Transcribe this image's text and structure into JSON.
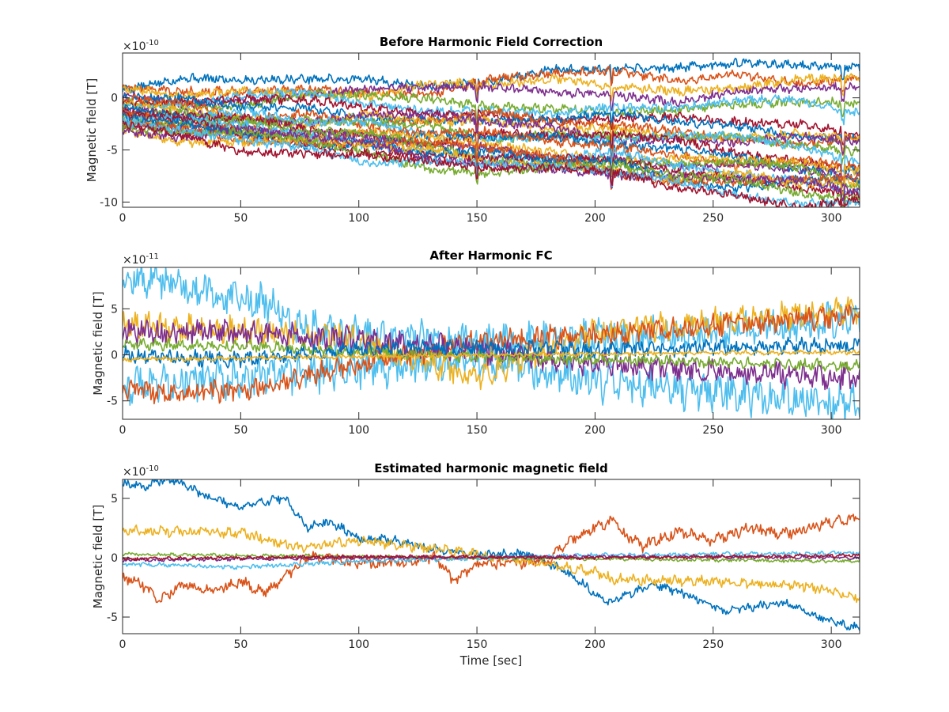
{
  "figure": {
    "background": "#ffffff"
  },
  "colors": [
    "#0072BD",
    "#D95319",
    "#EDB120",
    "#7E2F8E",
    "#77AC30",
    "#4DBEEE",
    "#A2142F"
  ],
  "chart_data": [
    {
      "type": "line",
      "title": "Before Harmonic Field Correction",
      "xlabel": "",
      "ylabel": "Magnetic field [T]",
      "exponent_label": "×10",
      "exponent_power": "-10",
      "xlim": [
        0,
        312
      ],
      "ylim": [
        -10.5,
        4.3
      ],
      "xticks": [
        0,
        50,
        100,
        150,
        200,
        250,
        300
      ],
      "yticks": [
        -10,
        -5,
        0
      ],
      "series_count": 28,
      "series_start_range": [
        -3.2,
        0.8
      ],
      "series_end_range": [
        -10.2,
        3.6
      ],
      "noise_amplitude": 0.35,
      "dip_times": [
        150,
        207,
        305
      ],
      "series_start_values": [
        0.6,
        0.4,
        0.3,
        0.1,
        -0.1,
        -0.3,
        -0.5,
        -0.6,
        -0.8,
        -1.0,
        -1.1,
        -1.3,
        -1.4,
        -1.6,
        -1.7,
        -1.9,
        -2.0,
        -2.1,
        -2.2,
        -2.3,
        -2.4,
        -2.5,
        -2.6,
        -2.7,
        -2.8,
        -2.9,
        -3.0,
        -3.2
      ],
      "series_end_values": [
        3.6,
        2.4,
        1.8,
        0.6,
        -0.8,
        -1.3,
        -2.8,
        -3.2,
        -3.6,
        -4.0,
        -4.4,
        -4.9,
        -5.4,
        -5.9,
        -6.3,
        -6.6,
        -7.1,
        -7.5,
        -7.8,
        -8.0,
        -8.3,
        -8.6,
        -8.8,
        -9.1,
        -9.4,
        -9.7,
        -10.0,
        -10.2
      ]
    },
    {
      "type": "line",
      "title": "After Harmonic FC",
      "xlabel": "",
      "ylabel": "Magnetic field [T]",
      "exponent_label": "×10",
      "exponent_power": "-11",
      "xlim": [
        0,
        312
      ],
      "ylim": [
        -7,
        9.5
      ],
      "xticks": [
        0,
        50,
        100,
        150,
        200,
        250,
        300
      ],
      "yticks": [
        -5,
        0,
        5
      ],
      "series": [
        {
          "color_index": 5,
          "points": [
            [
              0,
              8.2
            ],
            [
              20,
              8.0
            ],
            [
              40,
              6.3
            ],
            [
              60,
              5.6
            ],
            [
              75,
              3.2
            ],
            [
              100,
              2.0
            ],
            [
              150,
              1.5
            ],
            [
              200,
              1.8
            ],
            [
              250,
              2.5
            ],
            [
              312,
              3.8
            ]
          ],
          "noise": 1.6
        },
        {
          "color_index": 5,
          "points": [
            [
              0,
              -3.2
            ],
            [
              50,
              -2.5
            ],
            [
              100,
              -1.5
            ],
            [
              150,
              -0.5
            ],
            [
              200,
              -3.0
            ],
            [
              250,
              -4.0
            ],
            [
              312,
              -5.5
            ]
          ],
          "noise": 1.7
        },
        {
          "color_index": 2,
          "points": [
            [
              0,
              3.2
            ],
            [
              50,
              2.6
            ],
            [
              100,
              1.8
            ],
            [
              150,
              -2.5
            ],
            [
              200,
              2.5
            ],
            [
              250,
              3.5
            ],
            [
              312,
              5.0
            ]
          ],
          "noise": 1.2
        },
        {
          "color_index": 1,
          "points": [
            [
              0,
              -3.8
            ],
            [
              30,
              -4.2
            ],
            [
              60,
              -3.5
            ],
            [
              90,
              -1.5
            ],
            [
              150,
              1.5
            ],
            [
              200,
              2.2
            ],
            [
              250,
              3.2
            ],
            [
              312,
              4.3
            ]
          ],
          "noise": 1.0
        },
        {
          "color_index": 3,
          "points": [
            [
              0,
              2.5
            ],
            [
              50,
              2.4
            ],
            [
              100,
              1.6
            ],
            [
              150,
              0.5
            ],
            [
              200,
              -1.0
            ],
            [
              250,
              -1.8
            ],
            [
              312,
              -2.5
            ]
          ],
          "noise": 1.1
        },
        {
          "color_index": 4,
          "points": [
            [
              0,
              1.2
            ],
            [
              50,
              1.0
            ],
            [
              100,
              0.3
            ],
            [
              150,
              -0.2
            ],
            [
              200,
              -0.5
            ],
            [
              250,
              -0.8
            ],
            [
              312,
              -1.2
            ]
          ],
          "noise": 0.5
        },
        {
          "color_index": 0,
          "points": [
            [
              0,
              0.0
            ],
            [
              50,
              -0.5
            ],
            [
              100,
              0.6
            ],
            [
              150,
              0.8
            ],
            [
              200,
              0.5
            ],
            [
              250,
              0.8
            ],
            [
              312,
              1.0
            ]
          ],
          "noise": 0.7
        },
        {
          "color_index": 2,
          "points": [
            [
              0,
              -0.5
            ],
            [
              100,
              -0.2
            ],
            [
              200,
              0.1
            ],
            [
              312,
              0.3
            ]
          ],
          "noise": 0.2
        }
      ]
    },
    {
      "type": "line",
      "title": "Estimated harmonic magnetic field",
      "xlabel": "Time [sec]",
      "ylabel": "Magnetic field [T]",
      "exponent_label": "×10",
      "exponent_power": "-10",
      "xlim": [
        0,
        312
      ],
      "ylim": [
        -6.4,
        6.6
      ],
      "xticks": [
        0,
        50,
        100,
        150,
        200,
        250,
        300
      ],
      "yticks": [
        -5,
        0,
        5
      ],
      "series": [
        {
          "color_index": 0,
          "points": [
            [
              0,
              6.3
            ],
            [
              10,
              6.0
            ],
            [
              18,
              6.6
            ],
            [
              25,
              6.3
            ],
            [
              35,
              5.2
            ],
            [
              50,
              4.3
            ],
            [
              58,
              4.6
            ],
            [
              65,
              5.0
            ],
            [
              70,
              4.8
            ],
            [
              78,
              2.5
            ],
            [
              85,
              3.0
            ],
            [
              92,
              2.6
            ],
            [
              100,
              1.6
            ],
            [
              115,
              1.5
            ],
            [
              130,
              0.8
            ],
            [
              150,
              0.3
            ],
            [
              170,
              0.3
            ],
            [
              185,
              -0.8
            ],
            [
              195,
              -2.2
            ],
            [
              205,
              -3.8
            ],
            [
              215,
              -3.0
            ],
            [
              225,
              -2.2
            ],
            [
              240,
              -3.2
            ],
            [
              255,
              -4.5
            ],
            [
              270,
              -4.0
            ],
            [
              280,
              -3.8
            ],
            [
              295,
              -5.0
            ],
            [
              312,
              -6.0
            ]
          ],
          "noise": 0.3
        },
        {
          "color_index": 1,
          "points": [
            [
              0,
              -1.7
            ],
            [
              8,
              -2.2
            ],
            [
              15,
              -3.8
            ],
            [
              25,
              -2.2
            ],
            [
              35,
              -2.8
            ],
            [
              50,
              -2.0
            ],
            [
              60,
              -3.0
            ],
            [
              70,
              -1.5
            ],
            [
              78,
              0.0
            ],
            [
              90,
              0.0
            ],
            [
              100,
              -0.5
            ],
            [
              120,
              -0.5
            ],
            [
              132,
              0.0
            ],
            [
              140,
              -2.0
            ],
            [
              150,
              -0.5
            ],
            [
              160,
              -0.5
            ],
            [
              180,
              -0.3
            ],
            [
              187,
              1.2
            ],
            [
              200,
              2.5
            ],
            [
              208,
              3.2
            ],
            [
              212,
              2.0
            ],
            [
              220,
              1.0
            ],
            [
              235,
              2.2
            ],
            [
              250,
              1.5
            ],
            [
              265,
              2.5
            ],
            [
              280,
              2.0
            ],
            [
              295,
              2.8
            ],
            [
              312,
              3.4
            ]
          ],
          "noise": 0.4
        },
        {
          "color_index": 2,
          "points": [
            [
              0,
              2.3
            ],
            [
              50,
              2.1
            ],
            [
              75,
              0.8
            ],
            [
              100,
              1.5
            ],
            [
              150,
              0.3
            ],
            [
              200,
              -1.2
            ],
            [
              207,
              -1.8
            ],
            [
              250,
              -2.0
            ],
            [
              290,
              -2.4
            ],
            [
              312,
              -3.4
            ]
          ],
          "noise": 0.35
        },
        {
          "color_index": 5,
          "points": [
            [
              0,
              -0.5
            ],
            [
              50,
              -0.8
            ],
            [
              100,
              -0.3
            ],
            [
              200,
              0.2
            ],
            [
              312,
              0.4
            ]
          ],
          "noise": 0.15
        },
        {
          "color_index": 4,
          "points": [
            [
              0,
              0.3
            ],
            [
              100,
              0.1
            ],
            [
              200,
              -0.1
            ],
            [
              312,
              -0.3
            ]
          ],
          "noise": 0.12
        },
        {
          "color_index": 3,
          "points": [
            [
              0,
              -0.2
            ],
            [
              100,
              0.0
            ],
            [
              200,
              0.1
            ],
            [
              312,
              0.0
            ]
          ],
          "noise": 0.12
        },
        {
          "color_index": 6,
          "points": [
            [
              0,
              -0.1
            ],
            [
              100,
              0.1
            ],
            [
              200,
              0.0
            ],
            [
              312,
              0.2
            ]
          ],
          "noise": 0.12
        }
      ]
    }
  ]
}
